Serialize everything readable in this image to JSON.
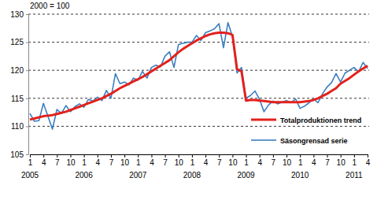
{
  "chart_data": {
    "type": "line",
    "subtitle": "2000 = 100",
    "categories": [
      "1",
      null,
      null,
      "4",
      null,
      null,
      "7",
      null,
      null,
      "10",
      null,
      null,
      "1",
      null,
      null,
      "4",
      null,
      null,
      "7",
      null,
      null,
      "10",
      null,
      null,
      "1",
      null,
      null,
      "4",
      null,
      null,
      "7",
      null,
      null,
      "10",
      null,
      null,
      "1",
      null,
      null,
      "4",
      null,
      null,
      "7",
      null,
      null,
      "10",
      null,
      null,
      "1",
      null,
      null,
      "4",
      null,
      null,
      "7",
      null,
      null,
      "10",
      null,
      null,
      "1",
      null,
      null,
      "4",
      null,
      null,
      "7",
      null,
      null,
      "10",
      null,
      null,
      "1",
      null,
      null,
      "4"
    ],
    "year_labels": [
      "2005",
      null,
      null,
      null,
      null,
      null,
      null,
      null,
      null,
      null,
      null,
      null,
      "2006",
      null,
      null,
      null,
      null,
      null,
      null,
      null,
      null,
      null,
      null,
      null,
      "2007",
      null,
      null,
      null,
      null,
      null,
      null,
      null,
      null,
      null,
      null,
      null,
      "2008",
      null,
      null,
      null,
      null,
      null,
      null,
      null,
      null,
      null,
      null,
      null,
      "2009",
      null,
      null,
      null,
      null,
      null,
      null,
      null,
      null,
      null,
      null,
      null,
      "2010",
      null,
      null,
      null,
      null,
      null,
      null,
      null,
      null,
      null,
      null,
      null,
      "2011",
      null,
      null,
      null
    ],
    "series": [
      {
        "name": "Totalproduktionen trend",
        "color": "#e3211c",
        "values": [
          111.2,
          111.4,
          111.6,
          111.8,
          111.9,
          112.0,
          112.2,
          112.4,
          112.6,
          112.9,
          113.2,
          113.5,
          113.8,
          114.1,
          114.4,
          114.7,
          115.0,
          115.4,
          115.8,
          116.3,
          116.8,
          117.2,
          117.6,
          118.0,
          118.4,
          118.8,
          119.3,
          119.8,
          120.3,
          120.8,
          121.3,
          121.8,
          122.5,
          123.2,
          123.8,
          124.3,
          124.8,
          125.3,
          125.7,
          126.1,
          126.4,
          126.6,
          126.7,
          126.7,
          126.6,
          126.3,
          120.2,
          119.8,
          114.6,
          114.7,
          114.7,
          114.6,
          114.5,
          114.4,
          114.3,
          114.3,
          114.3,
          114.3,
          114.3,
          114.3,
          114.3,
          114.4,
          114.5,
          114.7,
          115.0,
          115.4,
          115.8,
          116.3,
          116.8,
          117.6,
          118.1,
          118.6,
          119.2,
          119.8,
          120.3,
          120.8
        ]
      },
      {
        "name": "Säsongrensad serie",
        "color": "#3b7fc0",
        "values": [
          112.3,
          110.9,
          111.0,
          114.1,
          111.8,
          109.5,
          113.0,
          112.3,
          113.7,
          112.6,
          113.5,
          114.0,
          113.4,
          114.8,
          114.5,
          115.2,
          114.6,
          116.4,
          115.0,
          119.4,
          117.6,
          117.9,
          117.4,
          118.6,
          118.2,
          119.8,
          118.6,
          120.5,
          120.9,
          120.6,
          122.5,
          123.3,
          120.5,
          124.6,
          124.8,
          125.0,
          125.0,
          126.2,
          125.3,
          126.7,
          127.0,
          127.4,
          128.3,
          124.0,
          128.5,
          126.0,
          119.5,
          120.5,
          115.0,
          115.5,
          116.3,
          114.8,
          112.6,
          113.8,
          114.5,
          114.0,
          114.3,
          114.6,
          114.2,
          114.9,
          113.2,
          113.6,
          114.2,
          114.9,
          114.2,
          115.8,
          117.0,
          117.8,
          119.4,
          117.9,
          119.5,
          120.0,
          120.5,
          119.7,
          121.4,
          120.3
        ]
      }
    ],
    "ylim": [
      105,
      130
    ],
    "yticks": [
      105,
      110,
      115,
      120,
      125,
      130
    ],
    "grid": true,
    "legend": "lower right"
  }
}
